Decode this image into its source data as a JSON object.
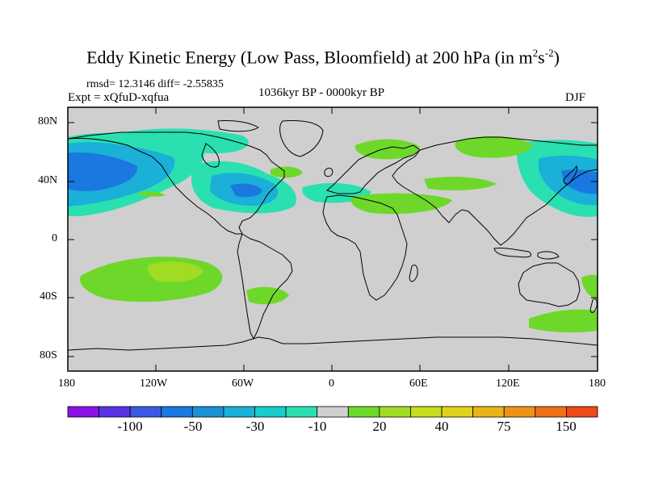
{
  "title": {
    "main": "Eddy Kinetic Energy (Low Pass, Bloomfield) at 200 hPa (in m",
    "sup1": "2",
    "mid": "s",
    "sup2": "-2",
    "end": ")"
  },
  "stats": "rmsd= 12.3146 diff= -2.55835",
  "experiment": "Expt = xQfuD-xqfua",
  "period": "1036kyr BP - 0000kyr BP",
  "season": "DJF",
  "axes": {
    "lat_labels": [
      "80N",
      "40N",
      "0",
      "40S",
      "80S"
    ],
    "lon_labels": [
      "180",
      "120W",
      "60W",
      "0",
      "60E",
      "120E",
      "180"
    ]
  },
  "colorbar": {
    "colors": [
      "#8a12e6",
      "#5a32e6",
      "#3a5ae6",
      "#1a78e0",
      "#1a92d8",
      "#1ab0d8",
      "#18cccc",
      "#2ae0b0",
      "#cfcfcf",
      "#6ed82a",
      "#a0dc24",
      "#c8dc1e",
      "#e0d21a",
      "#e8b418",
      "#ec9418",
      "#ee7018",
      "#ee4a18"
    ],
    "labels": [
      "-100",
      "-50",
      "-30",
      "-10",
      "20",
      "40",
      "75",
      "150"
    ]
  },
  "map_colors": {
    "background": "#cfcfcf",
    "neg_light": "#2ae0b0",
    "neg_mid": "#1ab0d8",
    "neg_strong": "#1a78e0",
    "pos_light": "#6ed82a",
    "pos_mid": "#a0dc24"
  }
}
